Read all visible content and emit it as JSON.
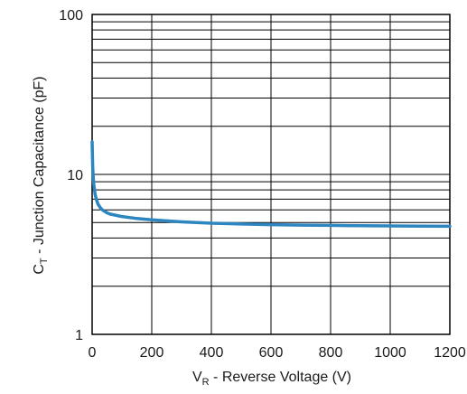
{
  "chart_data": {
    "type": "line",
    "title": "",
    "xlabel": {
      "prefix": "V",
      "sub": "R",
      "rest": " - Reverse Voltage (V)"
    },
    "ylabel": {
      "prefix": "C",
      "sub": "T",
      "rest": " - Junction Capacitance (pF)"
    },
    "xlim": [
      0,
      1200
    ],
    "ylim": [
      1,
      100
    ],
    "yscale": "log",
    "xticks": [
      0,
      200,
      400,
      600,
      800,
      1000,
      1200
    ],
    "xtick_labels": [
      "0",
      "200",
      "400",
      "600",
      "800",
      "1000",
      "1200"
    ],
    "yticks": [
      1,
      10,
      100
    ],
    "ytick_labels": [
      "1",
      "10",
      "100"
    ],
    "grid": true,
    "line_color": "#2e86c1",
    "series": [
      {
        "x": [
          0,
          2,
          5,
          10,
          15,
          20,
          30,
          40,
          50,
          60,
          80,
          100,
          150,
          200,
          300,
          400,
          500,
          600,
          700,
          800,
          900,
          1000,
          1100,
          1200
        ],
        "y": [
          16,
          11,
          8.8,
          7.5,
          6.9,
          6.5,
          6.1,
          5.9,
          5.75,
          5.65,
          5.55,
          5.45,
          5.3,
          5.2,
          5.05,
          4.95,
          4.9,
          4.85,
          4.82,
          4.8,
          4.78,
          4.76,
          4.75,
          4.74
        ]
      }
    ]
  }
}
